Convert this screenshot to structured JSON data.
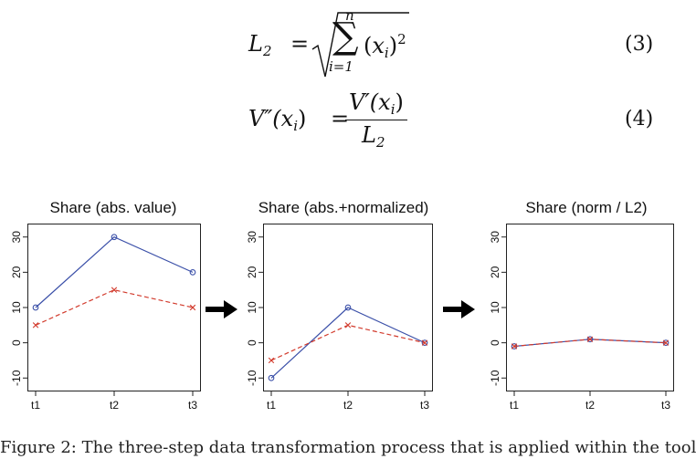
{
  "equations": [
    {
      "lhs": "L",
      "lhs_sub": "2",
      "sum_upper": "n",
      "sum_lower": "i=1",
      "term": "x",
      "term_sub": "i",
      "power": "2",
      "number": "(3)"
    },
    {
      "lhs": "V″(x",
      "lhs_sub": "i",
      "num": "V′(x",
      "num_sub": "i",
      "den": "L",
      "den_sub": "2",
      "number": "(4)"
    }
  ],
  "chart_data": [
    {
      "type": "line",
      "title": "Share (abs. value)",
      "categories": [
        "t1",
        "t2",
        "t3"
      ],
      "ylim": [
        -12,
        32
      ],
      "yticks": [
        -10,
        0,
        10,
        20,
        30
      ],
      "series": [
        {
          "values": [
            10,
            30,
            20
          ],
          "color": "#3a4fa8",
          "marker": "circle",
          "dash": "solid"
        },
        {
          "values": [
            5,
            15,
            10
          ],
          "color": "#d23a2c",
          "marker": "x",
          "dash": "dashed"
        }
      ]
    },
    {
      "type": "line",
      "title": "Share (abs.+normalized)",
      "categories": [
        "t1",
        "t2",
        "t3"
      ],
      "ylim": [
        -12,
        32
      ],
      "yticks": [
        -10,
        0,
        10,
        20,
        30
      ],
      "series": [
        {
          "values": [
            -10,
            10,
            0
          ],
          "color": "#3a4fa8",
          "marker": "circle",
          "dash": "solid"
        },
        {
          "values": [
            -5,
            5,
            0
          ],
          "color": "#d23a2c",
          "marker": "x",
          "dash": "dashed"
        }
      ]
    },
    {
      "type": "line",
      "title": "Share (norm / L2)",
      "categories": [
        "t1",
        "t2",
        "t3"
      ],
      "ylim": [
        -12,
        32
      ],
      "yticks": [
        -10,
        0,
        10,
        20,
        30
      ],
      "series": [
        {
          "values": [
            -1,
            1,
            0
          ],
          "color": "#3a4fa8",
          "marker": "circle",
          "dash": "solid"
        },
        {
          "values": [
            -1,
            1,
            0
          ],
          "color": "#d23a2c",
          "marker": "x",
          "dash": "dashed"
        }
      ]
    }
  ],
  "caption": "Figure 2: The three-step data transformation process that is applied within the tool"
}
